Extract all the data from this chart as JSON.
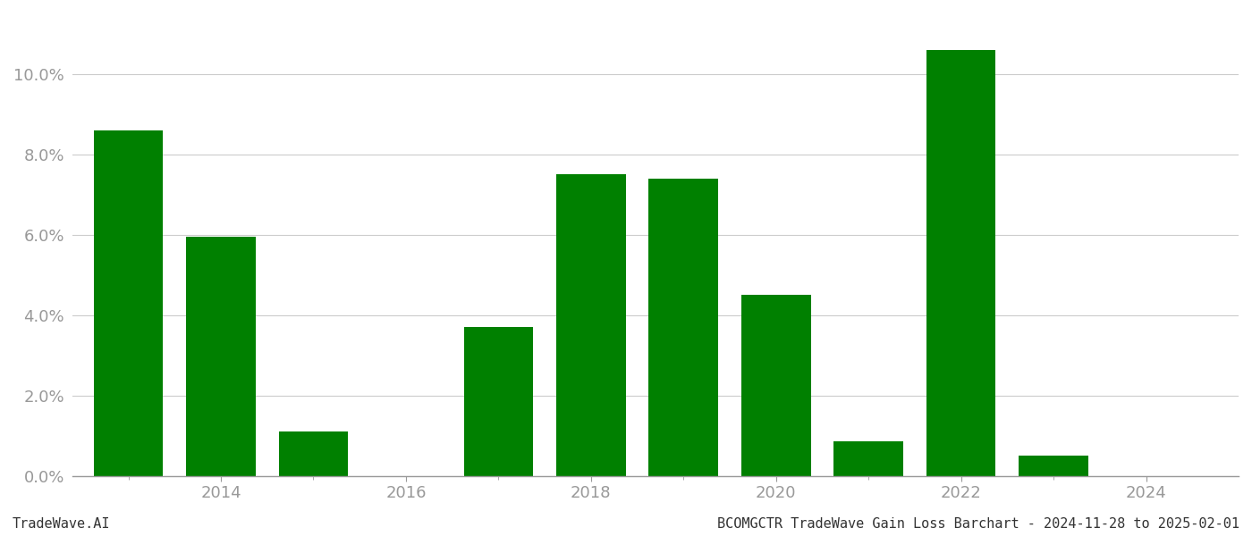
{
  "years": [
    2013,
    2014,
    2015,
    2016,
    2017,
    2018,
    2019,
    2020,
    2021,
    2022,
    2023,
    2024
  ],
  "values": [
    0.086,
    0.0595,
    0.011,
    0.0,
    0.037,
    0.075,
    0.074,
    0.045,
    0.0085,
    0.106,
    0.005,
    0.0
  ],
  "bar_color": "#008000",
  "background_color": "#ffffff",
  "grid_color": "#cccccc",
  "axis_color": "#999999",
  "tick_label_color": "#999999",
  "ylim": [
    0,
    0.115
  ],
  "yticks": [
    0.0,
    0.02,
    0.04,
    0.06,
    0.08,
    0.1
  ],
  "xtick_positions": [
    2014,
    2016,
    2018,
    2020,
    2022,
    2024
  ],
  "xtick_labels": [
    "2014",
    "2016",
    "2018",
    "2020",
    "2022",
    "2024"
  ],
  "xlim": [
    2012.4,
    2025.0
  ],
  "footer_left": "TradeWave.AI",
  "footer_right": "BCOMGCTR TradeWave Gain Loss Barchart - 2024-11-28 to 2025-02-01",
  "footer_fontsize": 11,
  "tick_fontsize": 13,
  "bar_width": 0.75
}
